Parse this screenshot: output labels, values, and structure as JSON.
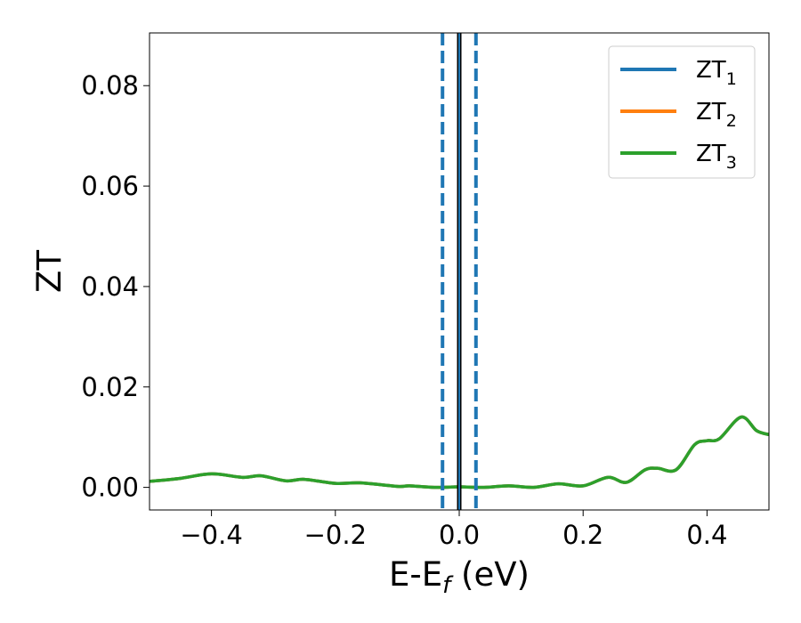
{
  "chart_data": {
    "type": "line",
    "title": "",
    "xlabel": {
      "base": "E-E",
      "sub": "f",
      "suffix": " (eV)"
    },
    "ylabel": "ZT",
    "xlim": [
      -0.5,
      0.5
    ],
    "ylim": [
      -0.0045,
      0.0905
    ],
    "x_ticks": [
      -0.4,
      -0.2,
      0.0,
      0.2,
      0.4
    ],
    "x_tick_labels": [
      "−0.4",
      "−0.2",
      "0.0",
      "0.2",
      "0.4"
    ],
    "y_ticks": [
      0.0,
      0.02,
      0.04,
      0.06,
      0.08
    ],
    "y_tick_labels": [
      "0.00",
      "0.02",
      "0.04",
      "0.06",
      "0.08"
    ],
    "grid": false,
    "legend_position": "top-right",
    "series": [
      {
        "name": {
          "base": "ZT",
          "sub": "1"
        },
        "color": "#1f77b4",
        "x": [
          -0.5,
          -0.45,
          -0.4,
          -0.35,
          -0.32,
          -0.28,
          -0.25,
          -0.2,
          -0.16,
          -0.1,
          -0.08,
          -0.04,
          0.0,
          0.04,
          0.08,
          0.12,
          0.16,
          0.2,
          0.24,
          0.27,
          0.3,
          0.32,
          0.35,
          0.38,
          0.4,
          0.42,
          0.455,
          0.48,
          0.5
        ],
        "y": [
          0.0012,
          0.0018,
          0.0027,
          0.002,
          0.0023,
          0.0013,
          0.0016,
          0.0008,
          0.0009,
          0.0002,
          0.0003,
          0.0,
          0.0001,
          0.0,
          0.0003,
          0.0,
          0.0007,
          0.0003,
          0.002,
          0.001,
          0.0035,
          0.0038,
          0.0035,
          0.0085,
          0.0093,
          0.0097,
          0.014,
          0.0113,
          0.0105
        ]
      },
      {
        "name": {
          "base": "ZT",
          "sub": "2"
        },
        "color": "#ff7f0e",
        "x": [
          -0.5,
          -0.45,
          -0.4,
          -0.35,
          -0.32,
          -0.28,
          -0.25,
          -0.2,
          -0.16,
          -0.1,
          -0.08,
          -0.04,
          0.0,
          0.04,
          0.08,
          0.12,
          0.16,
          0.2,
          0.24,
          0.27,
          0.3,
          0.32,
          0.35,
          0.38,
          0.4,
          0.42,
          0.455,
          0.48,
          0.5
        ],
        "y": [
          0.0012,
          0.0018,
          0.0027,
          0.002,
          0.0023,
          0.0013,
          0.0016,
          0.0008,
          0.0009,
          0.0002,
          0.0003,
          0.0,
          0.0001,
          0.0,
          0.0003,
          0.0,
          0.0007,
          0.0003,
          0.002,
          0.001,
          0.0035,
          0.0038,
          0.0035,
          0.0085,
          0.0093,
          0.0097,
          0.014,
          0.0113,
          0.0105
        ]
      },
      {
        "name": {
          "base": "ZT",
          "sub": "3"
        },
        "color": "#2ca02c",
        "x": [
          -0.5,
          -0.45,
          -0.4,
          -0.35,
          -0.32,
          -0.28,
          -0.25,
          -0.2,
          -0.16,
          -0.1,
          -0.08,
          -0.04,
          0.0,
          0.04,
          0.08,
          0.12,
          0.16,
          0.2,
          0.24,
          0.27,
          0.3,
          0.32,
          0.35,
          0.38,
          0.4,
          0.42,
          0.455,
          0.48,
          0.5
        ],
        "y": [
          0.0012,
          0.0018,
          0.0027,
          0.002,
          0.0023,
          0.0013,
          0.0016,
          0.0008,
          0.0009,
          0.0002,
          0.0003,
          0.0,
          0.0001,
          0.0,
          0.0003,
          0.0,
          0.0007,
          0.0003,
          0.002,
          0.001,
          0.0035,
          0.0038,
          0.0035,
          0.0085,
          0.0093,
          0.0097,
          0.014,
          0.0113,
          0.0105
        ]
      }
    ],
    "vertical_lines": [
      {
        "x": -0.027,
        "style": "dashed",
        "color": "#1f77b4"
      },
      {
        "x": 0.027,
        "style": "dashed",
        "color": "#1f77b4"
      },
      {
        "x": 0.0,
        "style": "solid",
        "color": "#000000"
      },
      {
        "x": 0.0,
        "style": "solid",
        "color": "#1f77b4"
      }
    ]
  }
}
